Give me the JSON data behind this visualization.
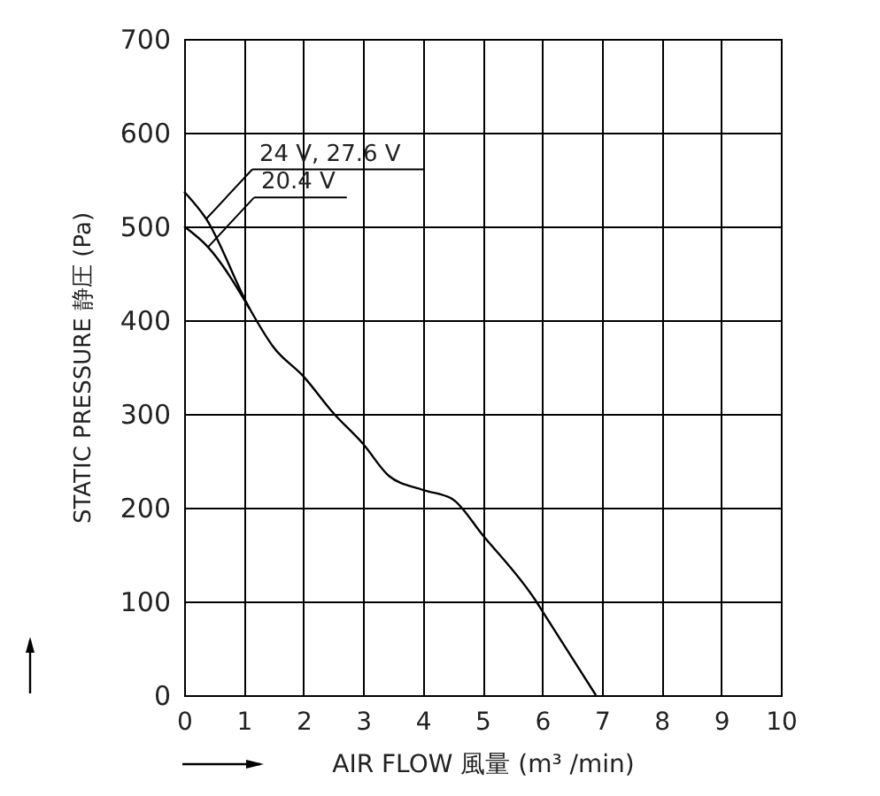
{
  "chart_data": {
    "type": "line",
    "xlabel": "AIR FLOW 風量 (m³ /min)",
    "ylabel": "STATIC PRESSURE 静圧 (Pa)",
    "xlim": [
      0,
      10
    ],
    "ylim": [
      0,
      700
    ],
    "xticks": [
      0,
      1,
      2,
      3,
      4,
      5,
      6,
      7,
      8,
      9,
      10
    ],
    "yticks": [
      0,
      100,
      200,
      300,
      400,
      500,
      600,
      700
    ],
    "grid": true,
    "series": [
      {
        "name": "24 V, 27.6 V",
        "color": "#000000",
        "x": [
          0,
          0.37,
          1.1,
          1.5,
          2,
          2.5,
          3,
          3.43,
          4,
          4.5,
          5,
          5.9,
          6,
          6.9
        ],
        "values": [
          537,
          508,
          412,
          371,
          340,
          301,
          268,
          234,
          219,
          209,
          171,
          100,
          90,
          0
        ]
      },
      {
        "name": "20.4 V",
        "color": "#000000",
        "x": [
          0,
          0.4,
          1.1
        ],
        "values": [
          500,
          478,
          412
        ]
      }
    ]
  }
}
